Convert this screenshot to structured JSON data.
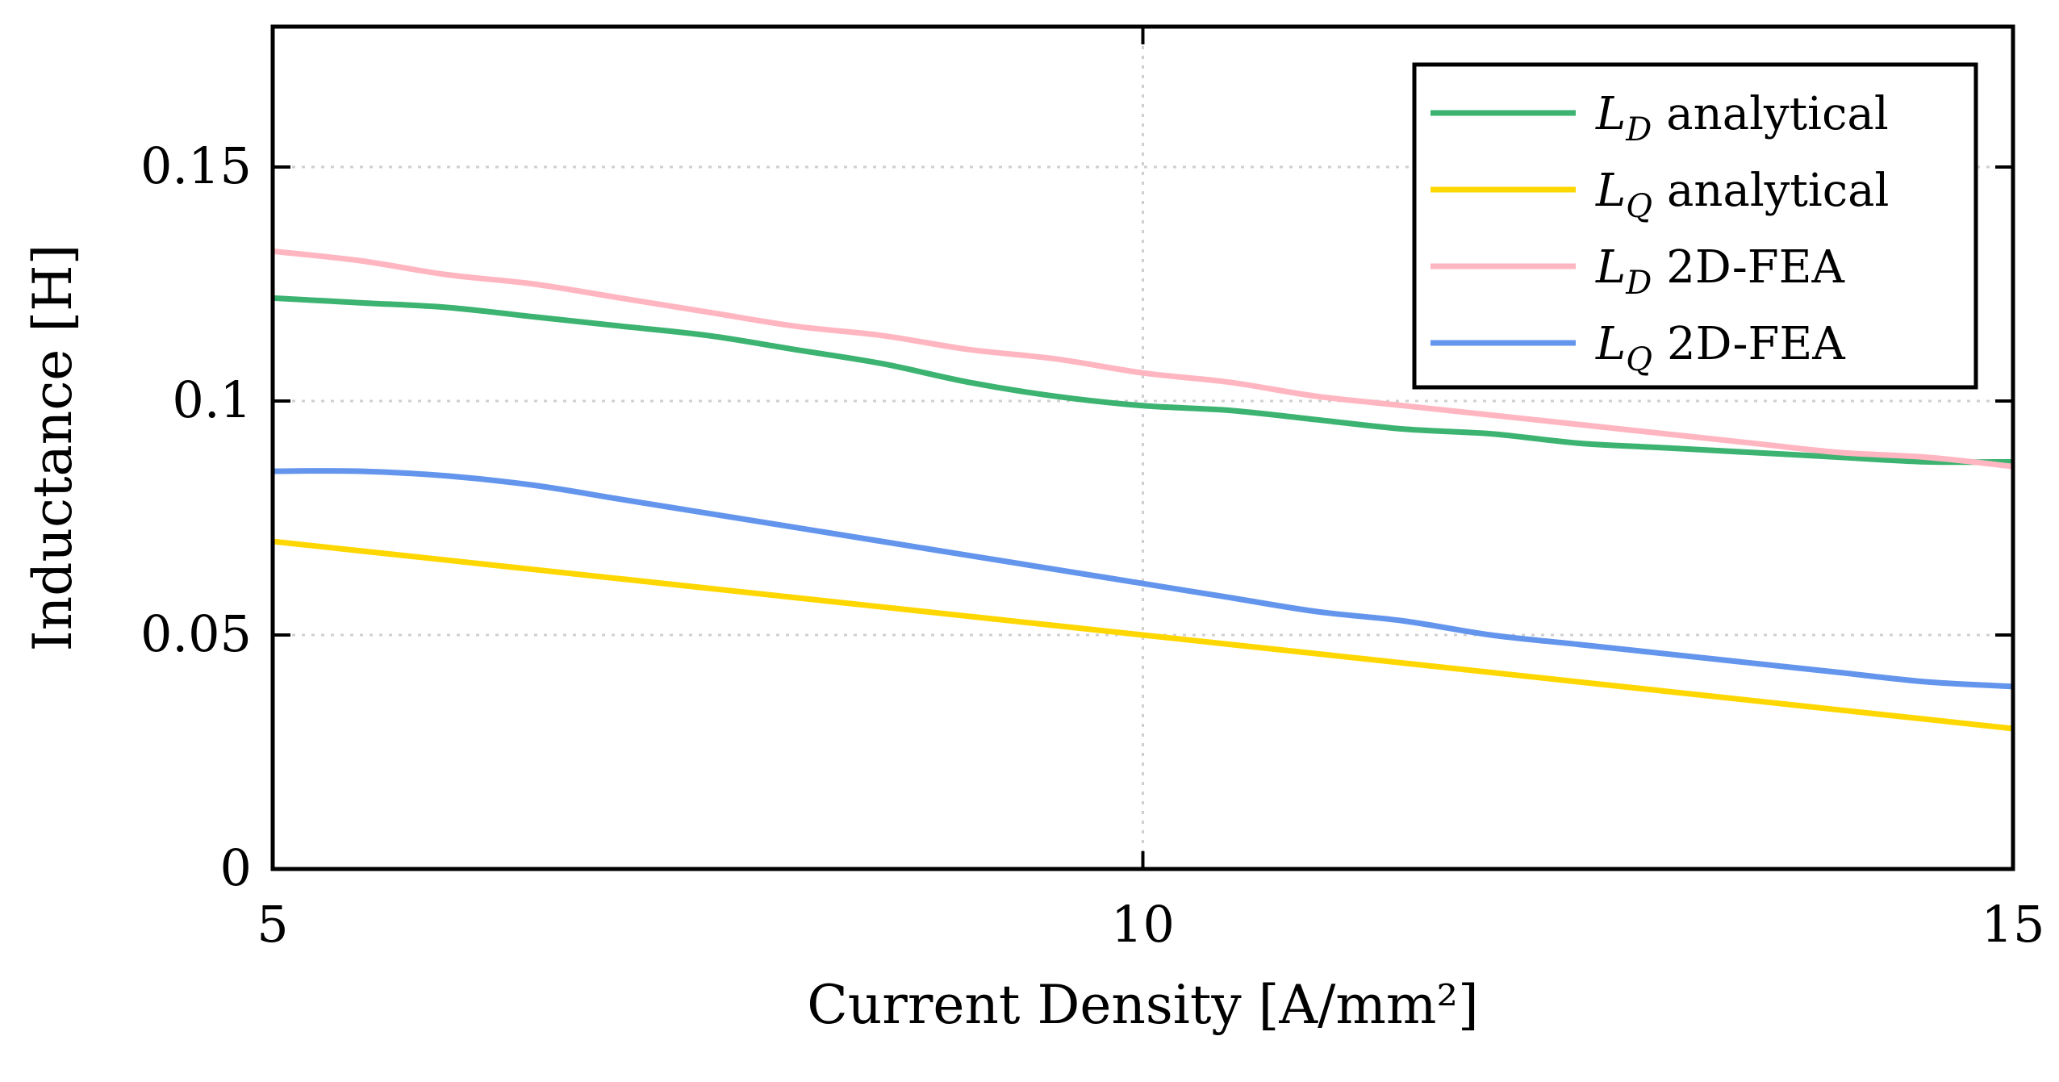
{
  "chart_data": {
    "type": "line",
    "title": "",
    "xlabel": "Current Density [A/mm²]",
    "ylabel": "Inductance [H]",
    "xlim": [
      5,
      15
    ],
    "ylim": [
      0,
      0.18
    ],
    "xticks": [
      5,
      10,
      15
    ],
    "xtick_labels": [
      "5",
      "10",
      "15"
    ],
    "yticks": [
      0,
      0.05,
      0.1,
      0.15
    ],
    "ytick_labels": [
      "0",
      "0.05",
      "0.1",
      "0.15"
    ],
    "grid": true,
    "legend_position": "top-right",
    "x": [
      5,
      5.5,
      6,
      6.5,
      7,
      7.5,
      8,
      8.5,
      9,
      9.5,
      10,
      10.5,
      11,
      11.5,
      12,
      12.5,
      13,
      13.5,
      14,
      14.5,
      15
    ],
    "series": [
      {
        "name": "L_D analytical",
        "legend_main": "L",
        "legend_sub": "D",
        "legend_text": "analytical",
        "color": "#3cb371",
        "values": [
          0.122,
          0.121,
          0.12,
          0.118,
          0.116,
          0.114,
          0.111,
          0.108,
          0.104,
          0.101,
          0.099,
          0.098,
          0.096,
          0.094,
          0.093,
          0.091,
          0.09,
          0.089,
          0.088,
          0.087,
          0.087
        ]
      },
      {
        "name": "L_Q analytical",
        "legend_main": "L",
        "legend_sub": "Q",
        "legend_text": "analytical",
        "color": "#ffd700",
        "values": [
          0.07,
          0.068,
          0.066,
          0.064,
          0.062,
          0.06,
          0.058,
          0.056,
          0.054,
          0.052,
          0.05,
          0.048,
          0.046,
          0.044,
          0.042,
          0.04,
          0.038,
          0.036,
          0.034,
          0.032,
          0.03
        ]
      },
      {
        "name": "L_D 2D-FEA",
        "legend_main": "L",
        "legend_sub": "D",
        "legend_text": "2D-FEA",
        "color": "#ffb6c1",
        "values": [
          0.132,
          0.13,
          0.127,
          0.125,
          0.122,
          0.119,
          0.116,
          0.114,
          0.111,
          0.109,
          0.106,
          0.104,
          0.101,
          0.099,
          0.097,
          0.095,
          0.093,
          0.091,
          0.089,
          0.088,
          0.086
        ]
      },
      {
        "name": "L_Q 2D-FEA",
        "legend_main": "L",
        "legend_sub": "Q",
        "legend_text": "2D-FEA",
        "color": "#6495ed",
        "values": [
          0.085,
          0.085,
          0.084,
          0.082,
          0.079,
          0.076,
          0.073,
          0.07,
          0.067,
          0.064,
          0.061,
          0.058,
          0.055,
          0.053,
          0.05,
          0.048,
          0.046,
          0.044,
          0.042,
          0.04,
          0.039
        ]
      }
    ]
  }
}
